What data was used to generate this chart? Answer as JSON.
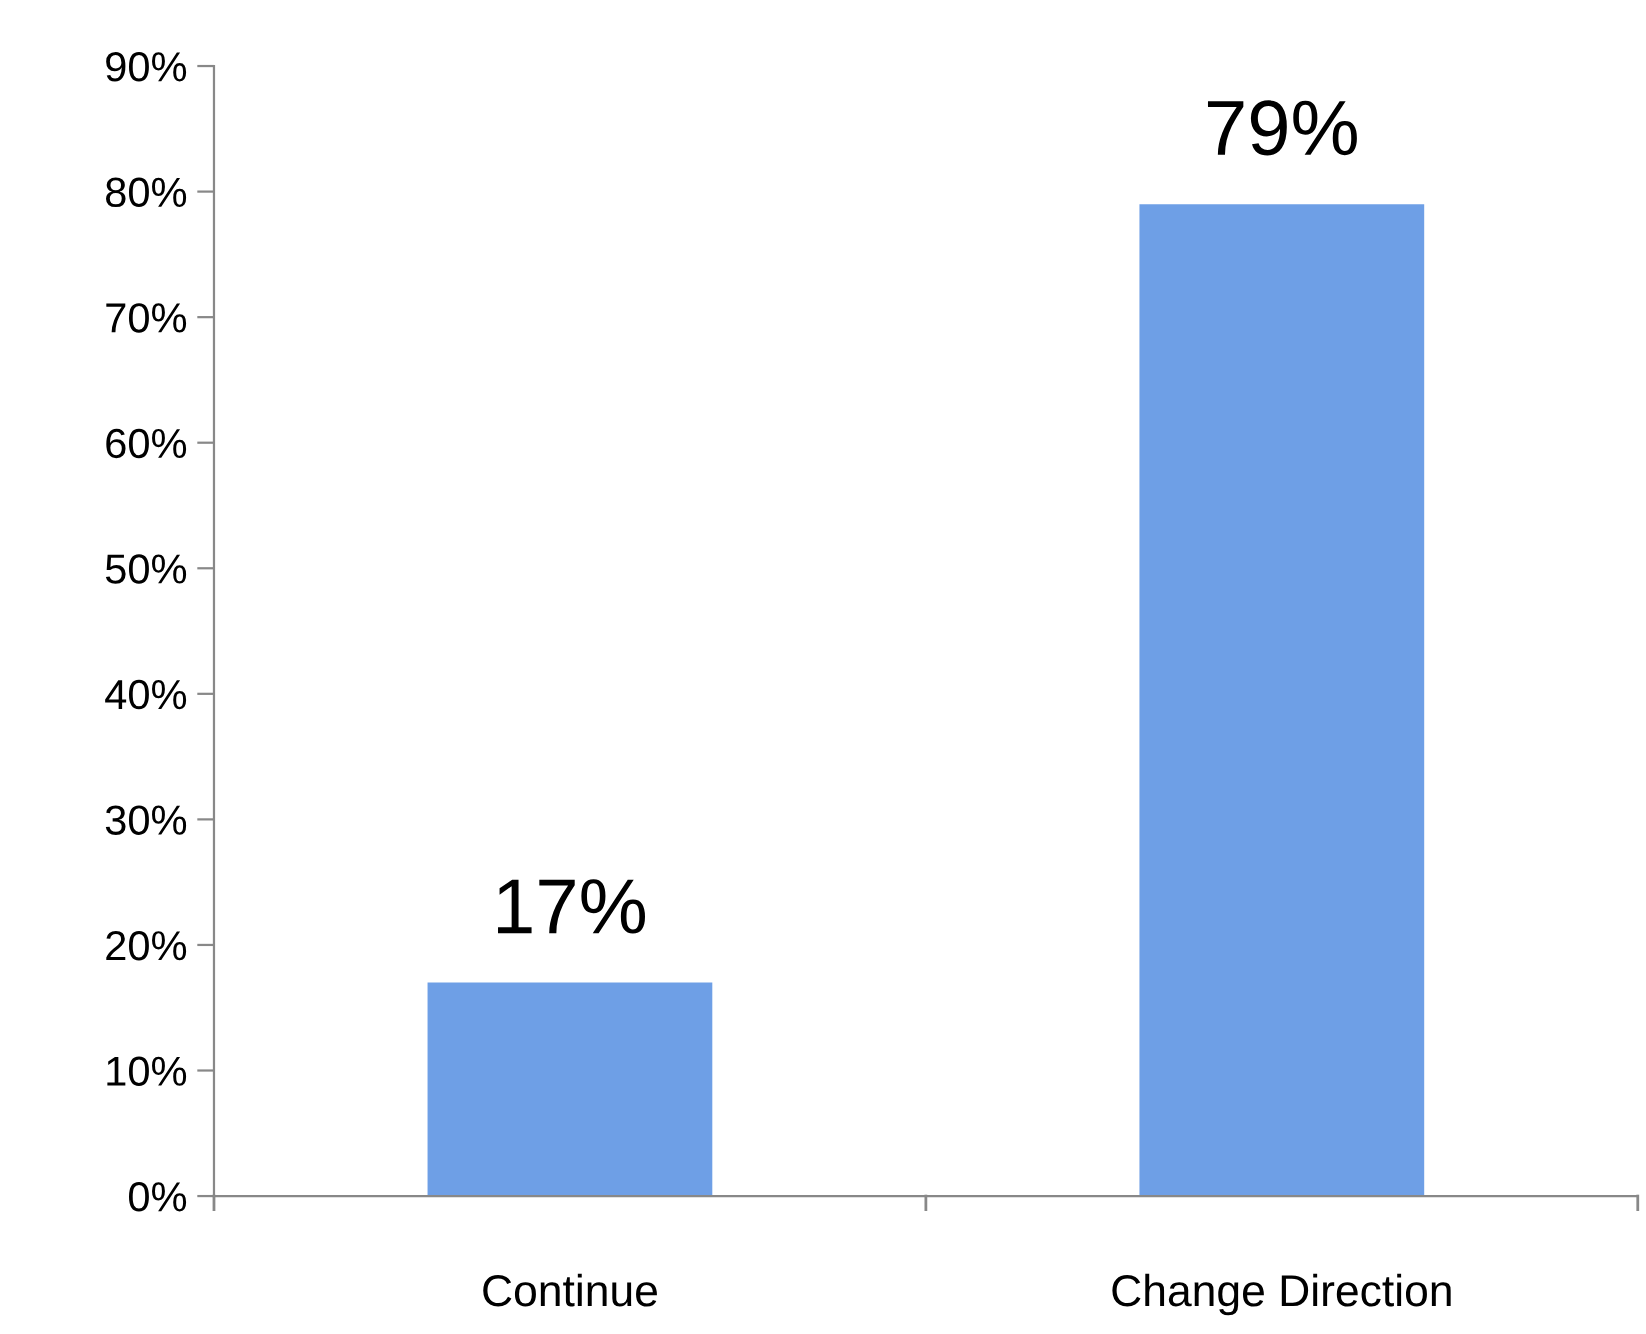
{
  "chart_data": {
    "type": "bar",
    "categories": [
      "Continue",
      "Change Direction"
    ],
    "values": [
      17,
      79
    ],
    "value_labels": [
      "17%",
      "79%"
    ],
    "color": "#6e9fe6",
    "ylim": [
      0,
      90
    ],
    "yticks": [
      {
        "value": 0,
        "label": "0%"
      },
      {
        "value": 10,
        "label": "10%"
      },
      {
        "value": 20,
        "label": "20%"
      },
      {
        "value": 30,
        "label": "30%"
      },
      {
        "value": 40,
        "label": "40%"
      },
      {
        "value": 50,
        "label": "50%"
      },
      {
        "value": 60,
        "label": "60%"
      },
      {
        "value": 70,
        "label": "70%"
      },
      {
        "value": 80,
        "label": "80%"
      },
      {
        "value": 90,
        "label": "90%"
      }
    ],
    "grid": false
  }
}
